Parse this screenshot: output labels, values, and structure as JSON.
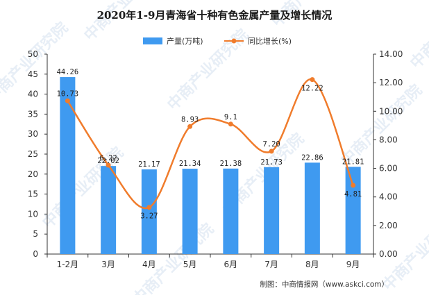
{
  "chart_data": {
    "type": "bar",
    "title": "2020年1-9月青海省十种有色金属产量及增长情况",
    "categories": [
      "1-2月",
      "3月",
      "4月",
      "5月",
      "6月",
      "7月",
      "8月",
      "9月"
    ],
    "series": [
      {
        "name": "产量(万吨)",
        "type": "bar",
        "axis": "left",
        "color": "#3f9af0",
        "values": [
          44.26,
          22.02,
          21.17,
          21.34,
          21.38,
          21.73,
          22.86,
          21.81
        ]
      },
      {
        "name": "同比增长(%)",
        "type": "line",
        "axis": "right",
        "color": "#f07c2c",
        "values": [
          10.73,
          6.22,
          3.27,
          8.93,
          9.1,
          7.2,
          12.22,
          4.81
        ]
      }
    ],
    "y_left": {
      "min": 0,
      "max": 50,
      "step": 5
    },
    "y_right": {
      "min": 0,
      "max": 14,
      "step": 2,
      "tick_labels": [
        "0.00",
        "2.00",
        "4.00",
        "6.00",
        "8.00",
        "10.00",
        "12.00",
        "14.00"
      ]
    },
    "grid": false,
    "legend_position": "top"
  },
  "source_note": "制图：中商情报网（www.askci.com）",
  "watermark": "中商产业研究院"
}
